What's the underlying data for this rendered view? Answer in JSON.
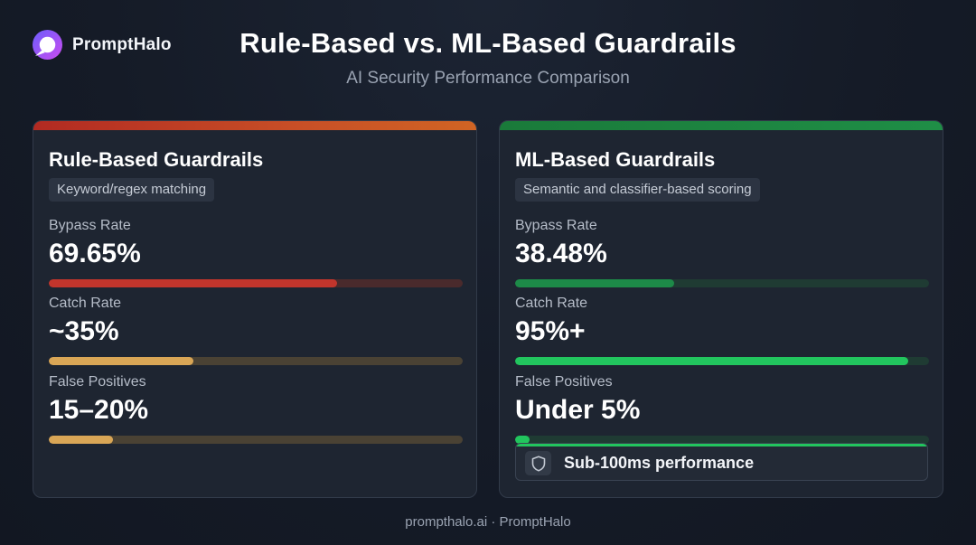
{
  "brand": {
    "name": "PromptHalo",
    "logo_icon": "halo-logo-icon",
    "logo_colors": [
      "#6d5dfc",
      "#c94cf0"
    ]
  },
  "header": {
    "title": "Rule-Based vs. ML-Based Guardrails",
    "subtitle": "AI Security Performance Comparison"
  },
  "cards": [
    {
      "title": "Rule-Based Guardrails",
      "tag": "Keyword/regex matching",
      "accent_color": "#c2352c",
      "metrics": [
        {
          "label": "Bypass Rate",
          "value": "69.65%",
          "fill": 0.6965,
          "color": "#c2352c"
        },
        {
          "label": "Catch Rate",
          "value": "~35%",
          "fill": 0.35,
          "color": "#d9a656"
        },
        {
          "label": "False Positives",
          "value": "15–20%",
          "fill": 0.155,
          "color": "#d9a656"
        }
      ]
    },
    {
      "title": "ML-Based Guardrails",
      "tag": "Semantic and classifier-based scoring",
      "accent_color": "#22c55e",
      "metrics": [
        {
          "label": "Bypass Rate",
          "value": "38.48%",
          "fill": 0.3848,
          "color": "#1d8a48"
        },
        {
          "label": "Catch Rate",
          "value": "95%+",
          "fill": 0.95,
          "color": "#22c55e"
        },
        {
          "label": "False Positives",
          "value": "Under 5%",
          "fill": 0.035,
          "color": "#22c55e"
        }
      ],
      "highlight": {
        "icon": "shield-icon",
        "text": "Sub-100ms performance"
      }
    }
  ],
  "footer": {
    "text": "prompthalo.ai · PromptHalo"
  }
}
